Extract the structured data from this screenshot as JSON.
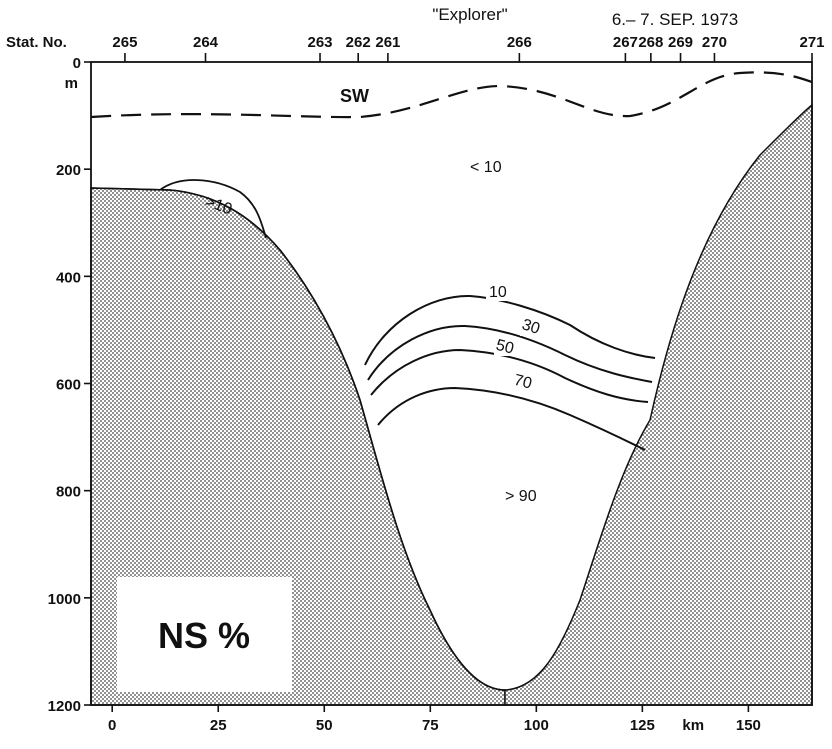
{
  "header": {
    "ship": "\"Explorer\"",
    "dates": "6.– 7. SEP. 1973",
    "station_prefix": "Stat. No."
  },
  "stations": [
    {
      "label": "265",
      "km": 3
    },
    {
      "label": "264",
      "km": 22
    },
    {
      "label": "263",
      "km": 49
    },
    {
      "label": "262",
      "km": 58
    },
    {
      "label": "261",
      "km": 65
    },
    {
      "label": "266",
      "km": 96
    },
    {
      "label": "267",
      "km": 121
    },
    {
      "label": "268",
      "km": 127
    },
    {
      "label": "269",
      "km": 134
    },
    {
      "label": "270",
      "km": 142
    },
    {
      "label": "271",
      "km": 165
    }
  ],
  "y_axis": {
    "unit": "m",
    "ticks": [
      {
        "v": 0,
        "label": "0"
      },
      {
        "v": 200,
        "label": "200"
      },
      {
        "v": 400,
        "label": "400"
      },
      {
        "v": 600,
        "label": "600"
      },
      {
        "v": 800,
        "label": "800"
      },
      {
        "v": 1000,
        "label": "1000"
      },
      {
        "v": 1200,
        "label": "1200"
      }
    ]
  },
  "x_axis": {
    "unit": "km",
    "ticks": [
      {
        "v": 0,
        "label": "0"
      },
      {
        "v": 25,
        "label": "25"
      },
      {
        "v": 50,
        "label": "50"
      },
      {
        "v": 75,
        "label": "75"
      },
      {
        "v": 100,
        "label": "100"
      },
      {
        "v": 125,
        "label": "125"
      },
      {
        "v": 150,
        "label": "150"
      }
    ]
  },
  "water_mass_label": "SW",
  "region_labels": {
    "low": "< 10",
    "small": ">10",
    "high": "> 90"
  },
  "isolines": [
    {
      "value": "10"
    },
    {
      "value": "30"
    },
    {
      "value": "50"
    },
    {
      "value": "70"
    }
  ],
  "title_box": "NS %"
}
